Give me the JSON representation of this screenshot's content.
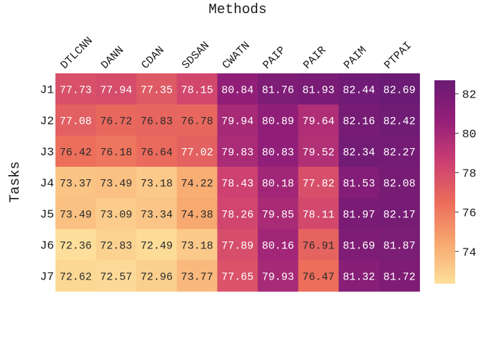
{
  "chart_data": {
    "type": "heatmap",
    "title": "",
    "xlabel": "Methods",
    "ylabel": "Tasks",
    "x": [
      "DTLCNN",
      "DANN",
      "CDAN",
      "SDSAN",
      "CWATN",
      "PAIP",
      "PAIR",
      "PAIM",
      "PTPAI"
    ],
    "y": [
      "J1",
      "J2",
      "J3",
      "J4",
      "J5",
      "J6",
      "J7"
    ],
    "values": [
      [
        77.73,
        77.94,
        77.35,
        78.15,
        80.84,
        81.76,
        81.93,
        82.44,
        82.69
      ],
      [
        77.08,
        76.72,
        76.83,
        76.78,
        79.94,
        80.89,
        79.64,
        82.16,
        82.42
      ],
      [
        76.42,
        76.18,
        76.64,
        77.02,
        79.83,
        80.83,
        79.52,
        82.34,
        82.27
      ],
      [
        73.37,
        73.49,
        73.18,
        74.22,
        78.43,
        80.18,
        77.82,
        81.53,
        82.08
      ],
      [
        73.49,
        73.09,
        73.34,
        74.38,
        78.26,
        79.85,
        78.11,
        81.97,
        82.17
      ],
      [
        72.36,
        72.83,
        72.49,
        73.18,
        77.89,
        80.16,
        76.91,
        81.69,
        81.87
      ],
      [
        72.62,
        72.57,
        72.96,
        73.77,
        77.65,
        79.93,
        76.47,
        81.32,
        81.72
      ]
    ],
    "colorbar": {
      "range": [
        72.36,
        82.69
      ],
      "ticks": [
        74,
        76,
        78,
        80,
        82
      ],
      "colors": [
        "#fddf9b",
        "#f7a86f",
        "#ec6d5b",
        "#cb3f72",
        "#951f79",
        "#6b1b74"
      ]
    },
    "legend": "none",
    "grid": false
  }
}
